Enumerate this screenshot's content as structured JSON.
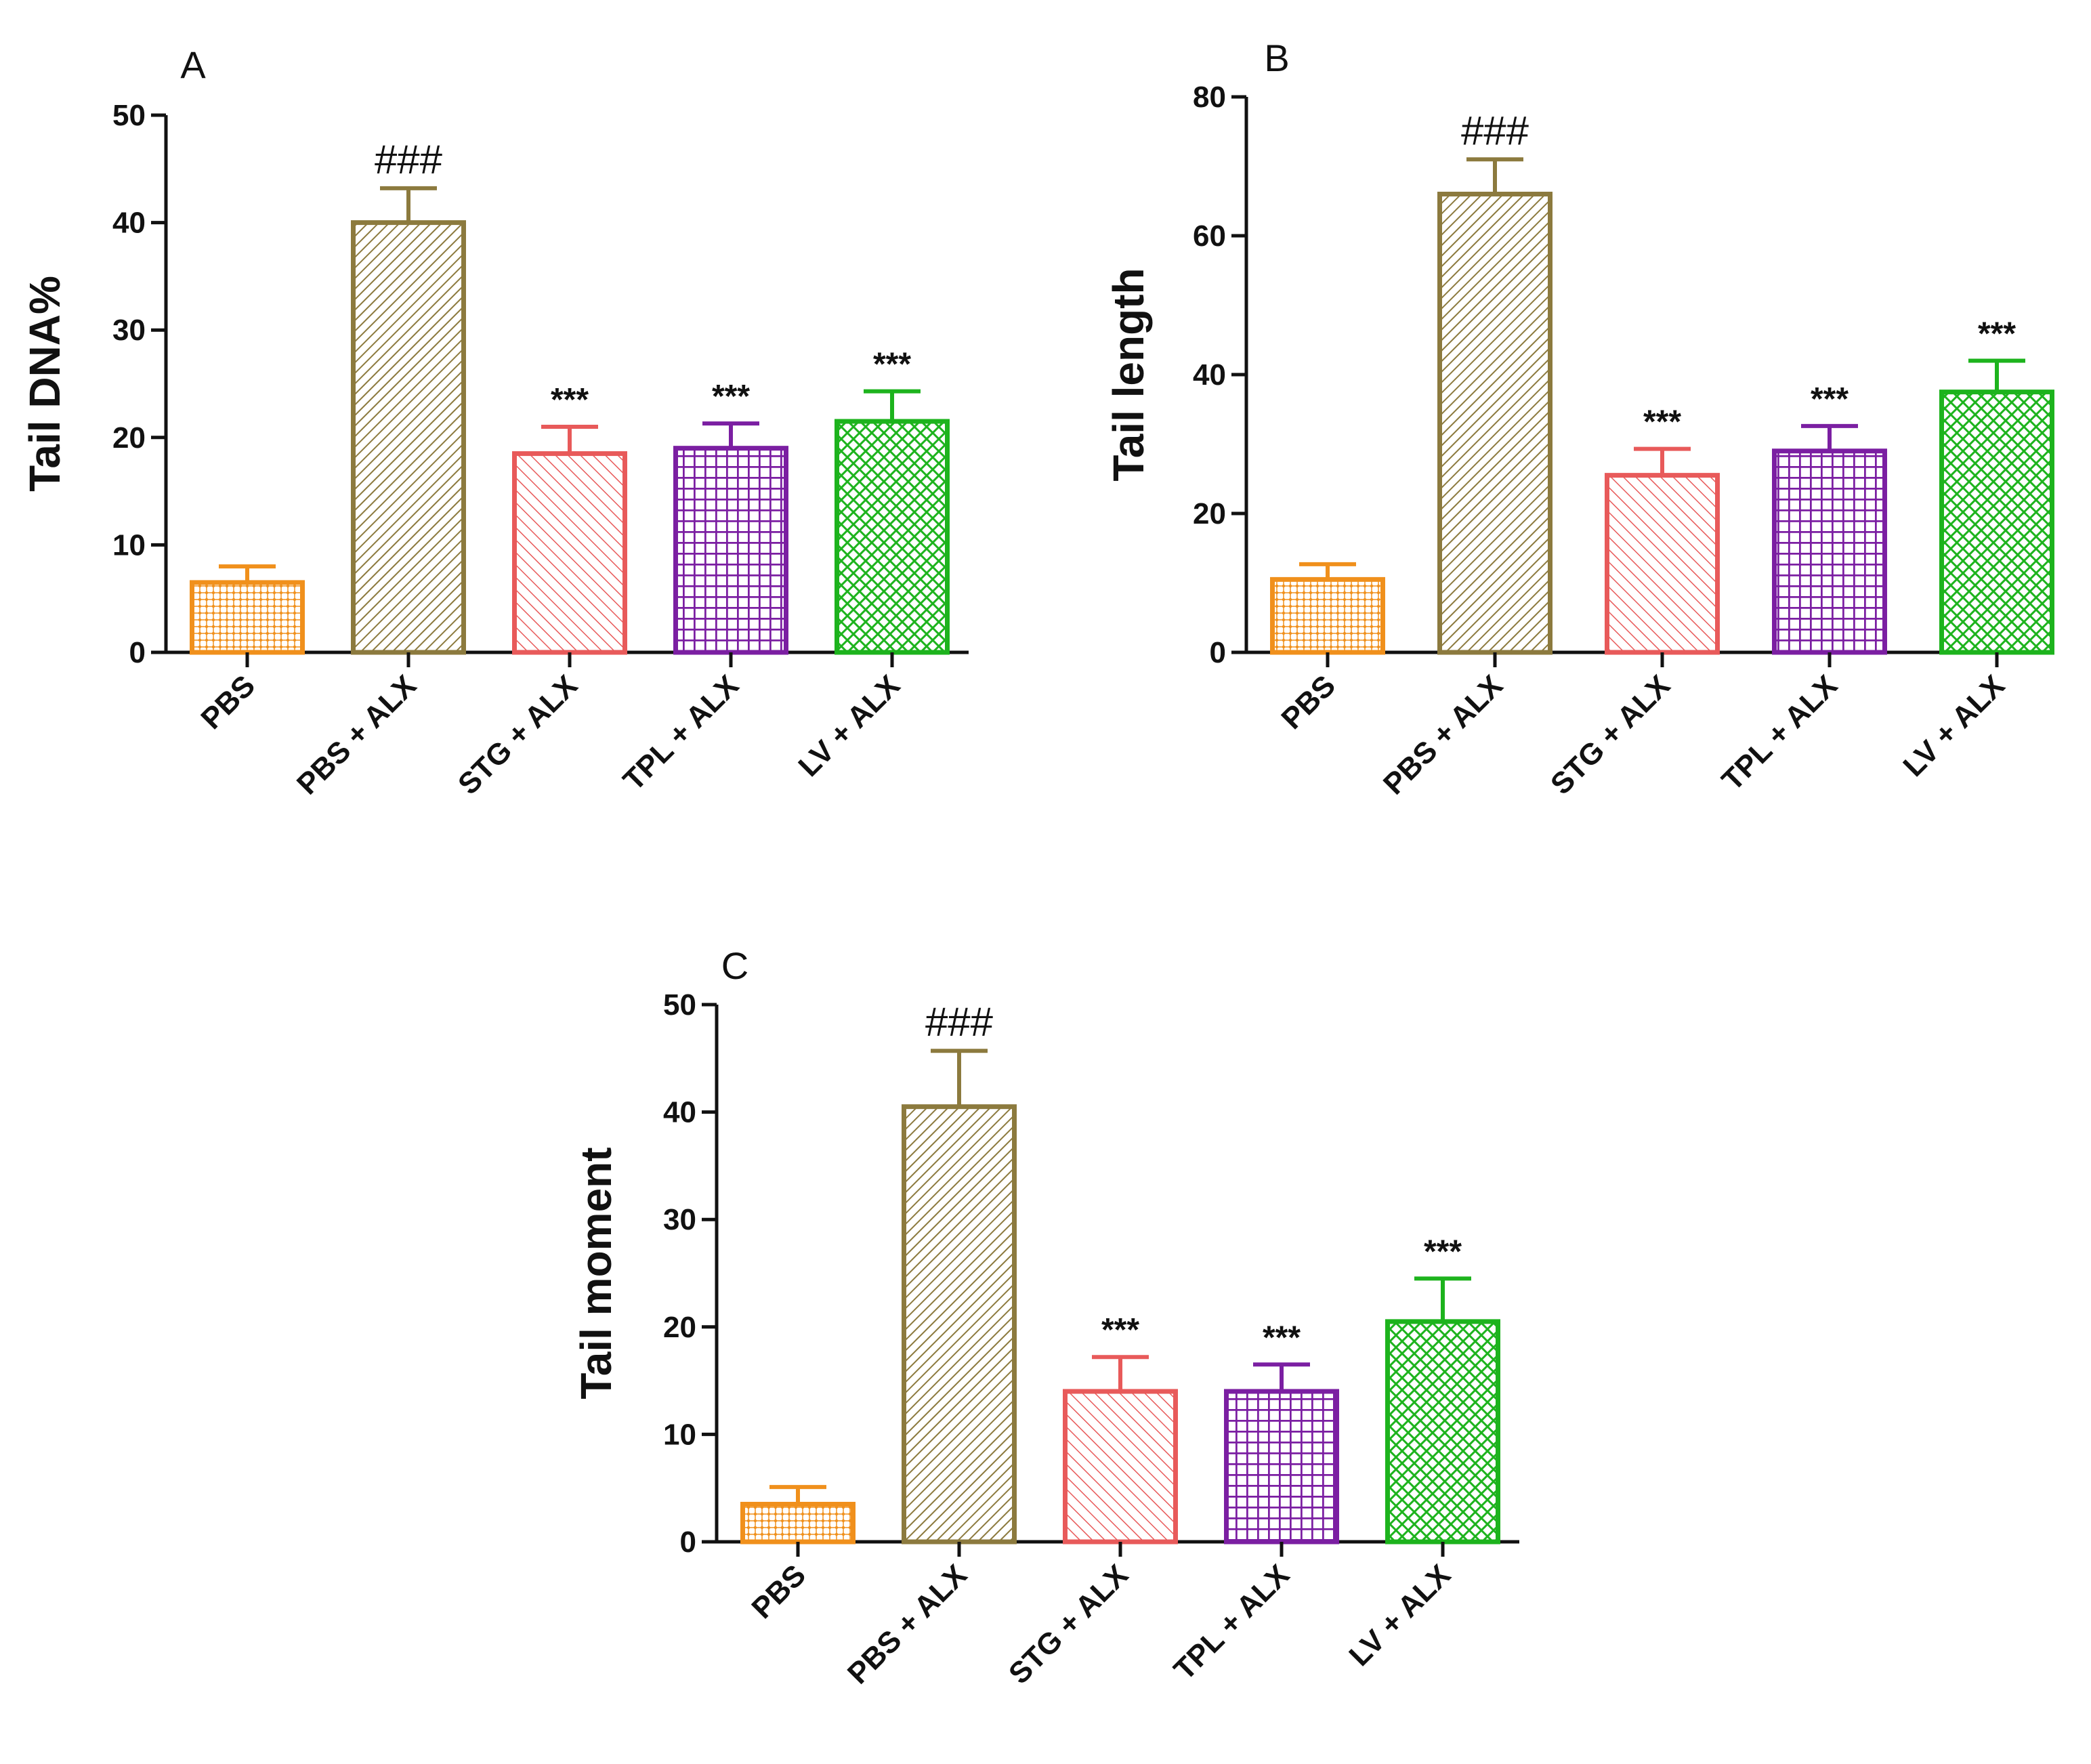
{
  "chart_data": [
    {
      "panel": "A",
      "type": "bar",
      "ylabel": "Tail DNA%",
      "ylim": [
        0,
        50
      ],
      "yticks": [
        0,
        10,
        20,
        30,
        40,
        50
      ],
      "categories": [
        "PBS",
        "PBS + ALX",
        "STG + ALX",
        "TPL + ALX",
        "LV + ALX"
      ],
      "values": [
        6.5,
        40,
        18.5,
        19,
        21.5
      ],
      "errors": [
        1.5,
        3.2,
        2.5,
        2.3,
        2.8
      ],
      "significance": [
        "",
        "###",
        "***",
        "***",
        "***"
      ]
    },
    {
      "panel": "B",
      "type": "bar",
      "ylabel": "Tail length",
      "ylim": [
        0,
        80
      ],
      "yticks": [
        0,
        20,
        40,
        60,
        80
      ],
      "categories": [
        "PBS",
        "PBS + ALX",
        "STG + ALX",
        "TPL + ALX",
        "LV + ALX"
      ],
      "values": [
        10.5,
        66,
        25.5,
        29,
        37.5
      ],
      "errors": [
        2.2,
        5,
        3.8,
        3.6,
        4.5
      ],
      "significance": [
        "",
        "###",
        "***",
        "***",
        "***"
      ]
    },
    {
      "panel": "C",
      "type": "bar",
      "ylabel": "Tail moment",
      "ylim": [
        0,
        50
      ],
      "yticks": [
        0,
        10,
        20,
        30,
        40,
        50
      ],
      "categories": [
        "PBS",
        "PBS + ALX",
        "STG + ALX",
        "TPL + ALX",
        "LV + ALX"
      ],
      "values": [
        3.5,
        40.5,
        14,
        14,
        20.5
      ],
      "errors": [
        1.6,
        5.2,
        3.2,
        2.5,
        4
      ],
      "significance": [
        "",
        "###",
        "***",
        "***",
        "***"
      ]
    }
  ],
  "bar_styles": [
    {
      "color": "#F0901C",
      "pattern": "dots"
    },
    {
      "color": "#8C7A3E",
      "pattern": "diag-dense"
    },
    {
      "color": "#E85A5A",
      "pattern": "diag-back"
    },
    {
      "color": "#7B1FA2",
      "pattern": "grid"
    },
    {
      "color": "#1DB31D",
      "pattern": "crosshatch"
    }
  ]
}
